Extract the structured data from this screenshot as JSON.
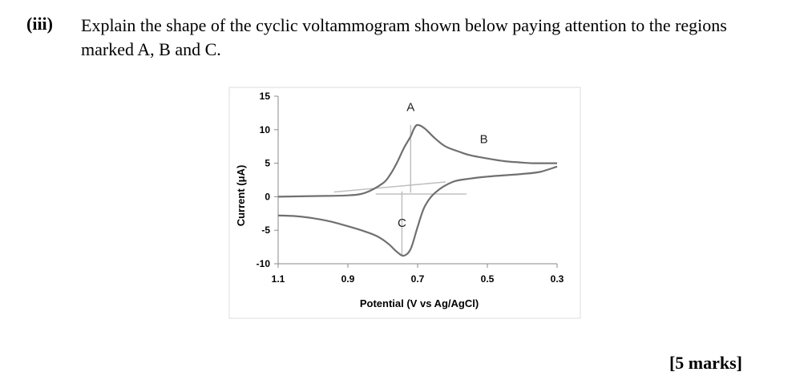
{
  "question": {
    "number": "(iii)",
    "text": "Explain the shape of the cyclic voltammogram shown below paying attention to the regions marked A, B and C.",
    "marks": "[5 marks]"
  },
  "chart_data": {
    "type": "line",
    "title": "",
    "xlabel": "Potential (V vs Ag/AgCl)",
    "ylabel": "Current (μA)",
    "xlim": [
      1.1,
      0.3
    ],
    "ylim": [
      -10,
      15
    ],
    "x_reversed": true,
    "xticks": [
      1.1,
      0.9,
      0.7,
      0.5,
      0.3
    ],
    "xtick_labels": [
      "1.1",
      "0.9",
      "0.7",
      "0.5",
      "0.3"
    ],
    "yticks": [
      15,
      10,
      5,
      0,
      -5,
      -10
    ],
    "ytick_labels": [
      "15",
      "10",
      "5",
      "0",
      "-5",
      "-10"
    ],
    "grid": false,
    "series": [
      {
        "color": "#707070",
        "x": [
          1.1,
          1.0,
          0.9,
          0.85,
          0.8,
          0.78,
          0.76,
          0.74,
          0.72,
          0.71,
          0.7,
          0.68,
          0.65,
          0.62,
          0.58,
          0.55,
          0.5,
          0.45,
          0.4,
          0.37,
          0.35,
          0.33,
          0.3
        ],
        "y": [
          0,
          0.1,
          0.2,
          0.6,
          2.0,
          3.2,
          5.0,
          7.2,
          9.0,
          10.2,
          10.7,
          10.2,
          8.7,
          7.5,
          6.7,
          6.2,
          5.7,
          5.3,
          5.1,
          5.0,
          5.0,
          5.0,
          5.0
        ]
      },
      {
        "color": "#707070",
        "x": [
          0.3,
          0.35,
          0.4,
          0.45,
          0.5,
          0.55,
          0.6,
          0.65,
          0.68,
          0.7,
          0.72,
          0.74,
          0.76,
          0.78,
          0.8,
          0.82,
          0.85,
          0.9,
          0.95,
          1.0,
          1.05,
          1.1
        ],
        "y": [
          4.5,
          3.7,
          3.4,
          3.2,
          3.0,
          2.7,
          2.2,
          0.6,
          -1.5,
          -4.5,
          -7.8,
          -8.8,
          -8.2,
          -7.2,
          -6.4,
          -5.8,
          -5.2,
          -4.4,
          -3.7,
          -3.2,
          -2.9,
          -2.8
        ]
      }
    ],
    "guide_lines": [
      {
        "color": "#c0c0c0",
        "x": [
          0.94,
          0.62
        ],
        "y": [
          0.7,
          2.2
        ]
      },
      {
        "color": "#c0c0c0",
        "x": [
          0.82,
          0.56
        ],
        "y": [
          0.4,
          0.4
        ]
      },
      {
        "color": "#c0c0c0",
        "x": [
          0.72,
          0.72
        ],
        "y": [
          10.7,
          0.6
        ]
      },
      {
        "color": "#c0c0c0",
        "x": [
          0.745,
          0.745
        ],
        "y": [
          -8.8,
          0.8
        ]
      }
    ],
    "annotations": [
      {
        "text": "A",
        "x": 0.72,
        "y": 12.8
      },
      {
        "text": "B",
        "x": 0.51,
        "y": 8.0
      },
      {
        "text": "C",
        "x": 0.745,
        "y": -4.5
      }
    ]
  }
}
